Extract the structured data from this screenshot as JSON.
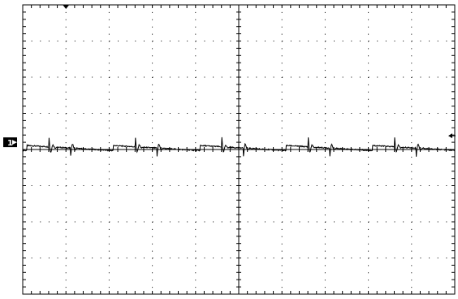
{
  "chart_data": {
    "type": "line",
    "title": "",
    "xlabel": "",
    "ylabel": "",
    "grid": true,
    "divisions": {
      "horizontal": 10,
      "vertical": 8
    },
    "minor_ticks_per_division": 5,
    "xlim": [
      0,
      10
    ],
    "ylim": [
      -4,
      4
    ],
    "channel_marker": {
      "label": "1",
      "level": 0.2
    },
    "trigger_level": 0.2,
    "series": [
      {
        "values": []
      }
    ],
    "waveform": {
      "period_div": 2.0,
      "phase_div": 0.1,
      "baseline": 0.04,
      "ripple_amplitude": 0.14,
      "spike_amplitude": 0.35,
      "spike_offset_div": 0.5,
      "dip_offset_div": 1.0,
      "dip_amplitude": -0.3
    }
  }
}
